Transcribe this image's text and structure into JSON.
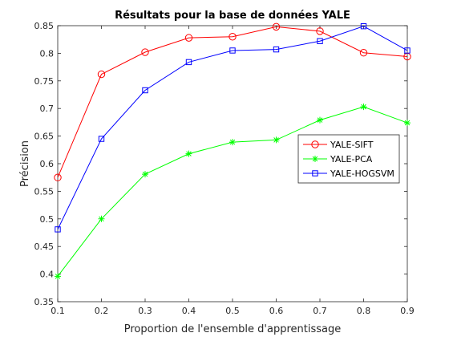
{
  "chart_data": {
    "type": "line",
    "title": "Résultats pour la base de données YALE",
    "xlabel": "Proportion de l'ensemble d'apprentissage",
    "ylabel": "Précision",
    "x": [
      0.1,
      0.2,
      0.3,
      0.4,
      0.5,
      0.6,
      0.7,
      0.8,
      0.9
    ],
    "xlim": [
      0.1,
      0.9
    ],
    "ylim": [
      0.35,
      0.85
    ],
    "xticks": [
      "0.1",
      "0.2",
      "0.3",
      "0.4",
      "0.5",
      "0.6",
      "0.7",
      "0.8",
      "0.9"
    ],
    "yticks": [
      "0.35",
      "0.4",
      "0.45",
      "0.5",
      "0.55",
      "0.6",
      "0.65",
      "0.7",
      "0.75",
      "0.8",
      "0.85"
    ],
    "grid": false,
    "legend_position": "center-right",
    "series": [
      {
        "name": "YALE-SIFT",
        "color": "#ff0000",
        "marker": "circle",
        "values": [
          0.575,
          0.762,
          0.802,
          0.828,
          0.83,
          0.848,
          0.84,
          0.801,
          0.794
        ]
      },
      {
        "name": "YALE-PCA",
        "color": "#00ff00",
        "marker": "star",
        "values": [
          0.396,
          0.5,
          0.581,
          0.618,
          0.639,
          0.643,
          0.679,
          0.703,
          0.674
        ]
      },
      {
        "name": "YALE-HOGSVM",
        "color": "#0000ff",
        "marker": "square",
        "values": [
          0.481,
          0.645,
          0.733,
          0.784,
          0.805,
          0.807,
          0.822,
          0.849,
          0.805
        ]
      }
    ]
  }
}
